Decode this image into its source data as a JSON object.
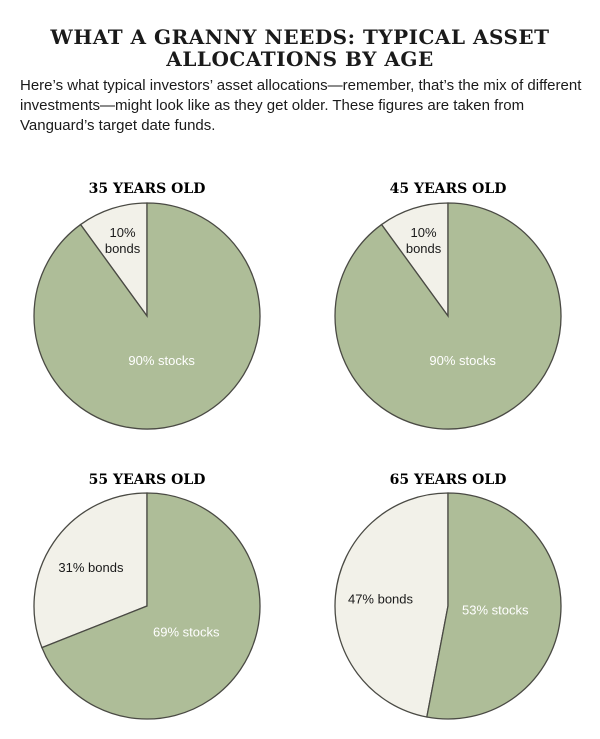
{
  "title": "WHAT A GRANNY NEEDS: TYPICAL ASSET\nALLOCATIONS BY AGE",
  "intro": "Here’s what typical investors’ asset allocations—remember, that’s the mix of different investments—might look like as they get older. These figures are taken from Vanguard’s target date funds.",
  "colors": {
    "stocks": "#aebd98",
    "bonds": "#f2f1e9",
    "outline": "#4a4a44",
    "stocks_text": "#ffffff",
    "bonds_text": "#1a1a1a"
  },
  "chart_data": [
    {
      "type": "pie",
      "title": "35 YEARS OLD",
      "slices": [
        {
          "name": "bonds",
          "value": 10,
          "label": "10%\nbonds"
        },
        {
          "name": "stocks",
          "value": 90,
          "label": "90% stocks"
        }
      ]
    },
    {
      "type": "pie",
      "title": "45 YEARS OLD",
      "slices": [
        {
          "name": "bonds",
          "value": 10,
          "label": "10%\nbonds"
        },
        {
          "name": "stocks",
          "value": 90,
          "label": "90% stocks"
        }
      ]
    },
    {
      "type": "pie",
      "title": "55 YEARS OLD",
      "slices": [
        {
          "name": "bonds",
          "value": 31,
          "label": "31% bonds"
        },
        {
          "name": "stocks",
          "value": 69,
          "label": "69% stocks"
        }
      ]
    },
    {
      "type": "pie",
      "title": "65 YEARS OLD",
      "slices": [
        {
          "name": "bonds",
          "value": 47,
          "label": "47% bonds"
        },
        {
          "name": "stocks",
          "value": 53,
          "label": "53% stocks"
        }
      ]
    }
  ]
}
